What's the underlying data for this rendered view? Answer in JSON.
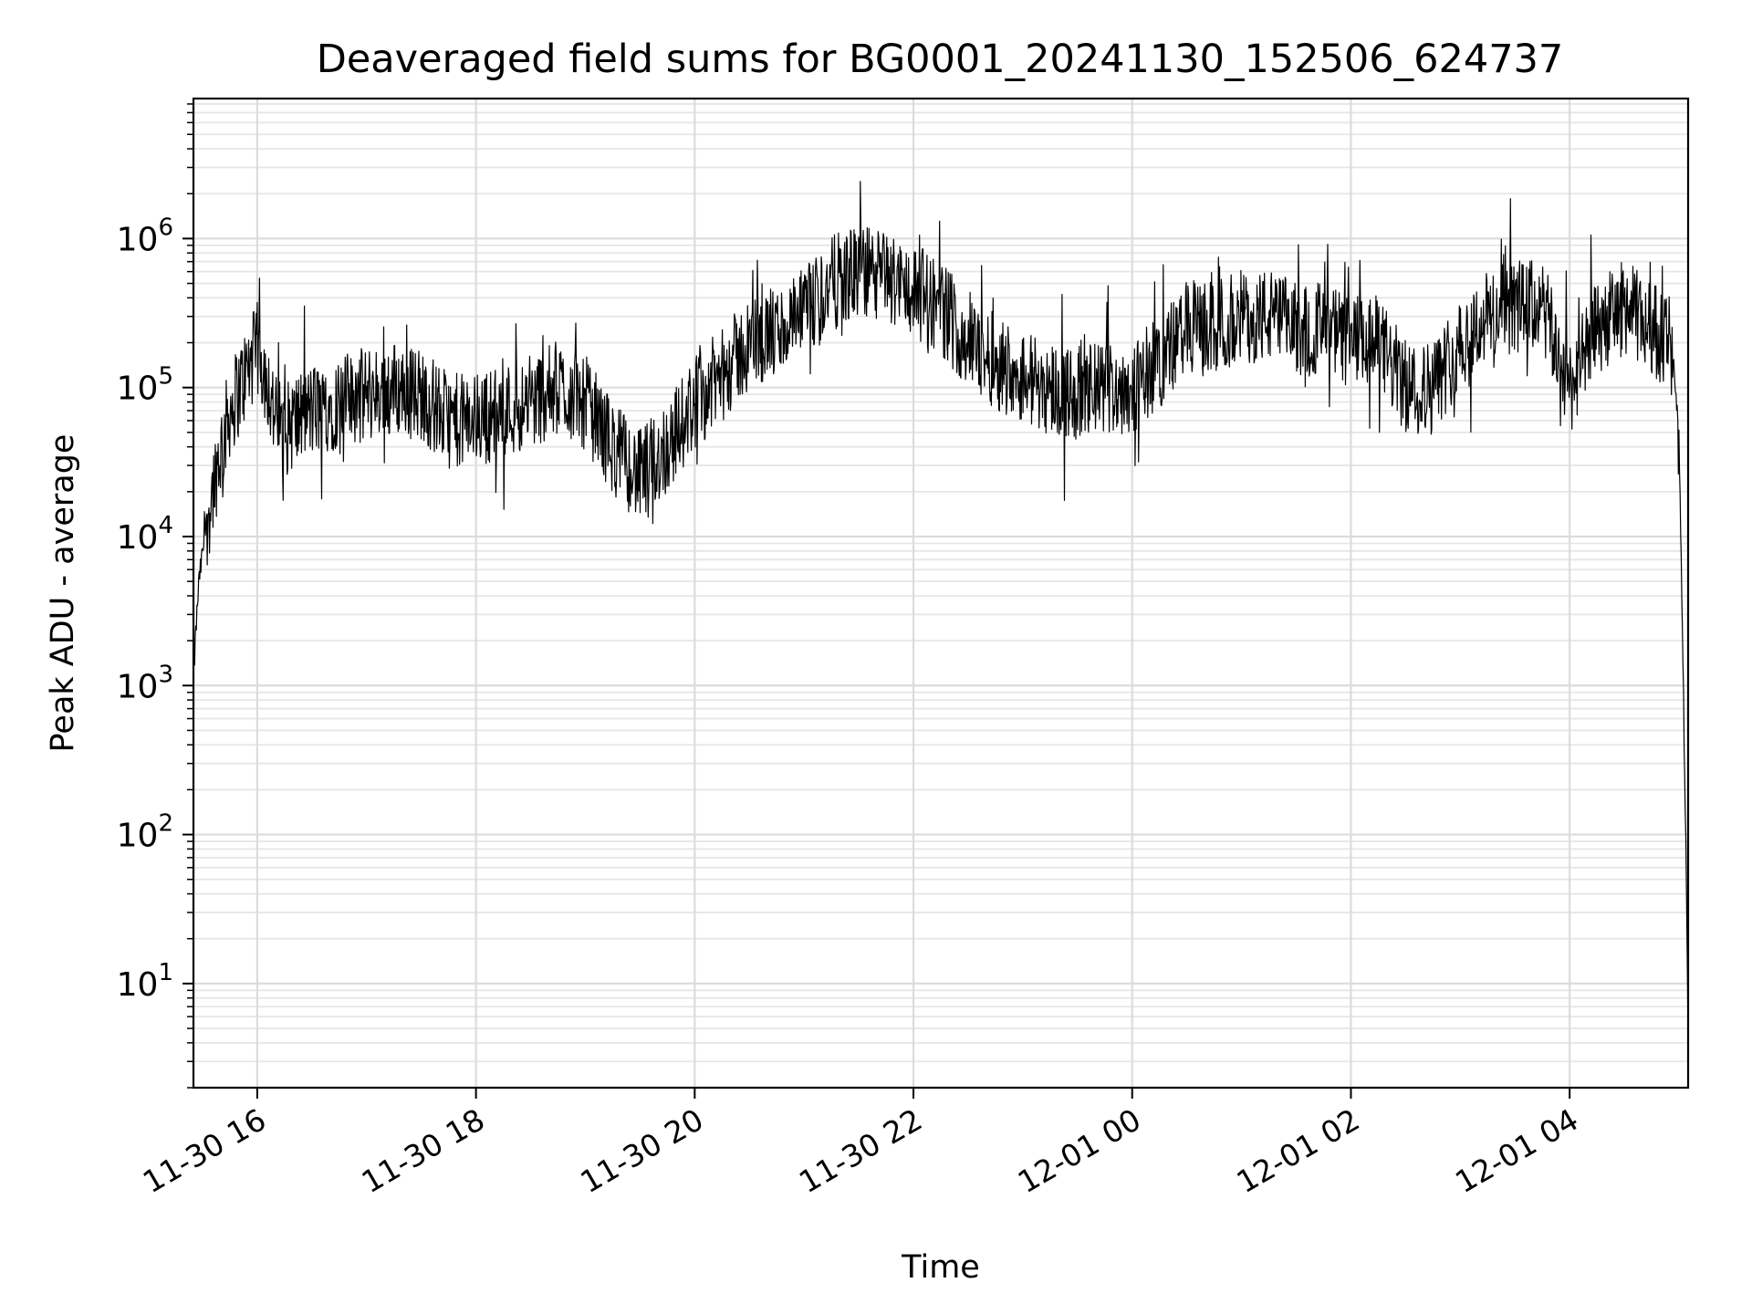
{
  "chart_data": {
    "type": "line",
    "title": "Deaveraged field sums for BG0001_20241130_152506_624737",
    "xlabel": "Time",
    "ylabel": "Peak ADU - average",
    "yscale": "log",
    "x_axis_type": "datetime",
    "xlim": [
      "2024-11-30T15:25:00",
      "2024-12-01T05:05:00"
    ],
    "ylim": [
      2,
      8700000
    ],
    "xticks": [
      "2024-11-30T16:00:00",
      "2024-11-30T18:00:00",
      "2024-11-30T20:00:00",
      "2024-11-30T22:00:00",
      "2024-12-01T00:00:00",
      "2024-12-01T02:00:00",
      "2024-12-01T04:00:00"
    ],
    "xtick_labels": [
      "11-30 16",
      "11-30 18",
      "11-30 20",
      "11-30 22",
      "12-01 00",
      "12-01 02",
      "12-01 04"
    ],
    "yticks": [
      10,
      100,
      1000,
      10000,
      100000,
      1000000
    ],
    "ytick_labels": [
      {
        "base": "10",
        "exp": "1"
      },
      {
        "base": "10",
        "exp": "2"
      },
      {
        "base": "10",
        "exp": "3"
      },
      {
        "base": "10",
        "exp": "4"
      },
      {
        "base": "10",
        "exp": "5"
      },
      {
        "base": "10",
        "exp": "6"
      }
    ],
    "grid": true,
    "series_color": "#000000",
    "series": [
      {
        "x": [
          "2024-11-30T15:25:00",
          "2024-11-30T15:26:00",
          "2024-11-30T15:28:00",
          "2024-11-30T15:32:00",
          "2024-11-30T15:38:00",
          "2024-11-30T15:45:00",
          "2024-11-30T15:52:00",
          "2024-11-30T16:00:00",
          "2024-11-30T16:05:00",
          "2024-11-30T16:10:00",
          "2024-11-30T16:15:00",
          "2024-11-30T16:20:00",
          "2024-11-30T16:30:00",
          "2024-11-30T16:45:00",
          "2024-11-30T17:00:00",
          "2024-11-30T17:15:00",
          "2024-11-30T17:30:00",
          "2024-11-30T17:45:00",
          "2024-11-30T18:00:00",
          "2024-11-30T18:15:00",
          "2024-11-30T18:30:00",
          "2024-11-30T18:45:00",
          "2024-11-30T19:00:00",
          "2024-11-30T19:15:00",
          "2024-11-30T19:30:00",
          "2024-11-30T19:45:00",
          "2024-11-30T20:00:00",
          "2024-11-30T20:15:00",
          "2024-11-30T20:30:00",
          "2024-11-30T20:45:00",
          "2024-11-30T21:00:00",
          "2024-11-30T21:15:00",
          "2024-11-30T21:30:00",
          "2024-11-30T21:45:00",
          "2024-11-30T22:00:00",
          "2024-11-30T22:15:00",
          "2024-11-30T22:30:00",
          "2024-11-30T22:45:00",
          "2024-11-30T23:00:00",
          "2024-11-30T23:15:00",
          "2024-11-30T23:30:00",
          "2024-11-30T23:45:00",
          "2024-12-01T00:00:00",
          "2024-12-01T00:15:00",
          "2024-12-01T00:30:00",
          "2024-12-01T00:45:00",
          "2024-12-01T01:00:00",
          "2024-12-01T01:15:00",
          "2024-12-01T01:30:00",
          "2024-12-01T01:45:00",
          "2024-12-01T02:00:00",
          "2024-12-01T02:15:00",
          "2024-12-01T02:30:00",
          "2024-12-01T02:45:00",
          "2024-12-01T03:00:00",
          "2024-12-01T03:15:00",
          "2024-12-01T03:30:00",
          "2024-12-01T03:45:00",
          "2024-12-01T04:00:00",
          "2024-12-01T04:15:00",
          "2024-12-01T04:30:00",
          "2024-12-01T04:45:00",
          "2024-12-01T04:55:00",
          "2024-12-01T05:00:00",
          "2024-12-01T05:02:00",
          "2024-12-01T05:04:00",
          "2024-12-01T05:05:00"
        ],
        "y": [
          1000,
          2000,
          5000,
          12000,
          30000,
          70000,
          110000,
          180000,
          120000,
          60000,
          50000,
          60000,
          70000,
          80000,
          90000,
          100000,
          90000,
          60000,
          60000,
          70000,
          80000,
          100000,
          80000,
          40000,
          25000,
          40000,
          80000,
          120000,
          200000,
          230000,
          300000,
          500000,
          600000,
          550000,
          450000,
          350000,
          200000,
          150000,
          120000,
          100000,
          90000,
          100000,
          100000,
          150000,
          250000,
          250000,
          300000,
          300000,
          250000,
          250000,
          200000,
          200000,
          100000,
          100000,
          200000,
          300000,
          350000,
          350000,
          100000,
          250000,
          350000,
          250000,
          200000,
          50000,
          2000,
          50,
          4
        ]
      }
    ]
  }
}
